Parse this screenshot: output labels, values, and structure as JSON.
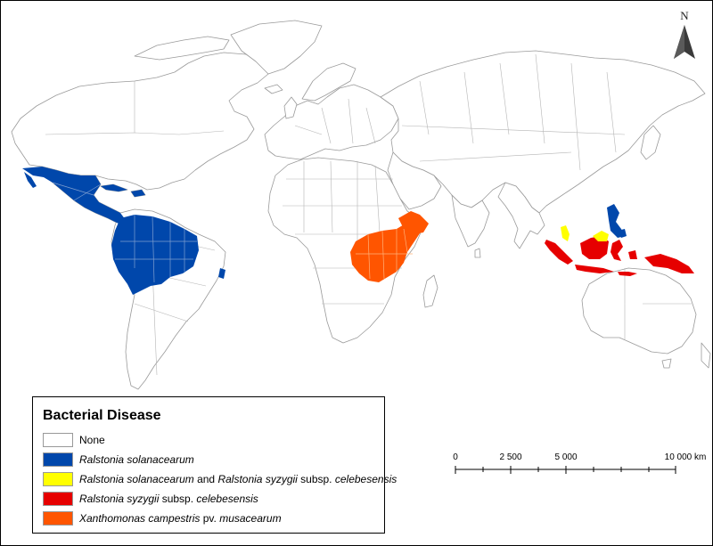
{
  "legend": {
    "title": "Bacterial Disease",
    "items": [
      {
        "color": "#ffffff",
        "parts": [
          {
            "t": "None",
            "i": false
          }
        ]
      },
      {
        "color": "#0047ab",
        "parts": [
          {
            "t": "Ralstonia solanacearum",
            "i": true
          }
        ]
      },
      {
        "color": "#ffff00",
        "parts": [
          {
            "t": "Ralstonia solanacearum",
            "i": true
          },
          {
            "t": " and ",
            "i": false
          },
          {
            "t": "Ralstonia syzygii",
            "i": true
          },
          {
            "t": " subsp. ",
            "i": false
          },
          {
            "t": "celebesensis",
            "i": true
          }
        ]
      },
      {
        "color": "#e60000",
        "parts": [
          {
            "t": "Ralstonia syzygii",
            "i": true
          },
          {
            "t": " subsp. ",
            "i": false
          },
          {
            "t": "celebesensis",
            "i": true
          }
        ]
      },
      {
        "color": "#ff5500",
        "parts": [
          {
            "t": "Xanthomonas campestris",
            "i": true
          },
          {
            "t": " pv. ",
            "i": false
          },
          {
            "t": "musacearum",
            "i": true
          }
        ]
      }
    ]
  },
  "scale": {
    "ticks": [
      "0",
      "2 500",
      "5 000",
      "10 000 km"
    ]
  },
  "north_arrow": {
    "label": "N"
  },
  "colors": {
    "none": "#ffffff",
    "ralstonia_solanacearum": "#0047ab",
    "both": "#ffff00",
    "ralstonia_syzygii": "#e60000",
    "xanthomonas": "#ff5500"
  }
}
